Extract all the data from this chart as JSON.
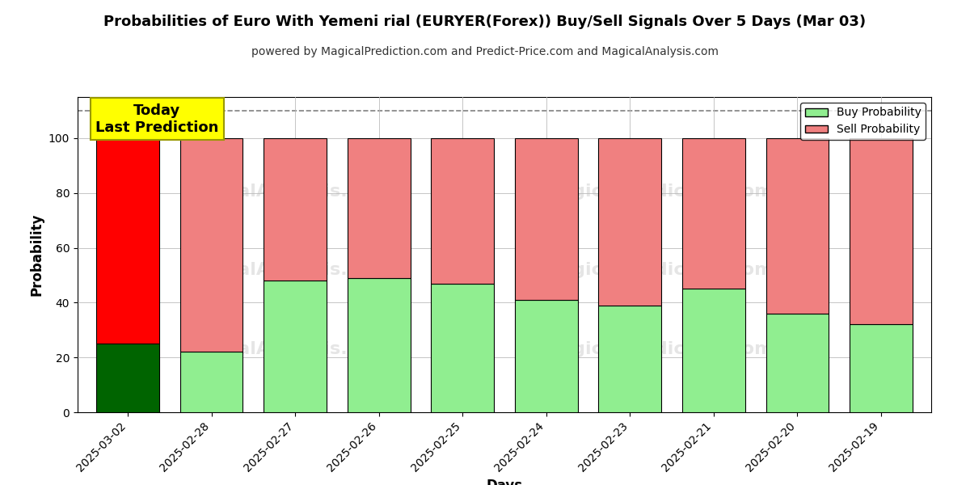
{
  "title": "Probabilities of Euro With Yemeni rial (EURYER(Forex)) Buy/Sell Signals Over 5 Days (Mar 03)",
  "subtitle": "powered by MagicalPrediction.com and Predict-Price.com and MagicalAnalysis.com",
  "xlabel": "Days",
  "ylabel": "Probability",
  "days": [
    "2025-03-02",
    "2025-02-28",
    "2025-02-27",
    "2025-02-26",
    "2025-02-25",
    "2025-02-24",
    "2025-02-23",
    "2025-02-21",
    "2025-02-20",
    "2025-02-19"
  ],
  "buy_values": [
    25,
    22,
    48,
    49,
    47,
    41,
    39,
    45,
    36,
    32
  ],
  "sell_values": [
    75,
    78,
    52,
    51,
    53,
    59,
    61,
    55,
    64,
    68
  ],
  "today_buy_color": "#006400",
  "today_sell_color": "#ff0000",
  "buy_color": "#90ee90",
  "sell_color": "#f08080",
  "today_label_bg": "#ffff00",
  "today_label_text": "Today\nLast Prediction",
  "buy_label": "Buy Probability",
  "sell_label": "Sell Probability",
  "ylim": [
    0,
    115
  ],
  "yticks": [
    0,
    20,
    40,
    60,
    80,
    100
  ],
  "dashed_line_y": 110,
  "watermark_line1": [
    "calAnalysis.com",
    "MagicalPrediction.com"
  ],
  "watermark_line2": [
    "calAnalysis.com",
    "MagicalPrediction.com"
  ],
  "bg_color": "#ffffff",
  "grid_color": "#bbbbbb",
  "bar_edge_color": "#000000",
  "bar_width": 0.75
}
